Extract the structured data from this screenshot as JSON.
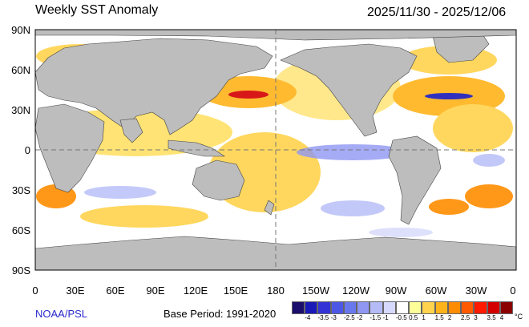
{
  "header": {
    "title": "Weekly SST Anomaly",
    "dates": "2025/11/30 - 2025/12/06"
  },
  "latitude_labels": [
    "90N",
    "60N",
    "30N",
    "0",
    "30S",
    "60S",
    "90S"
  ],
  "longitude_labels": [
    "0",
    "30E",
    "60E",
    "90E",
    "120E",
    "150E",
    "180",
    "150W",
    "120W",
    "90W",
    "60W",
    "30W",
    "0"
  ],
  "footer": {
    "credit": "NOAA/PSL",
    "base_period": "Base Period: 1991-2020"
  },
  "colorbar": {
    "ticks": [
      "-4",
      "-3.5",
      "-3",
      "-2.5",
      "-2",
      "-1.5",
      "-1",
      "-0.5",
      "0.5",
      "1",
      "1.5",
      "2",
      "2.5",
      "3",
      "3.5",
      "4"
    ],
    "unit": "°C",
    "colors": [
      "#1a0d6b",
      "#1a1ab8",
      "#3333d6",
      "#4d57e6",
      "#6a78ee",
      "#8f97f2",
      "#b4bbf7",
      "#d6d9fb",
      "#ffffff",
      "#ffff99",
      "#ffd34d",
      "#ffb31a",
      "#ff8c00",
      "#ff5a00",
      "#ff1a00",
      "#d40000",
      "#8b0000"
    ]
  },
  "colors": {
    "land": "#bdbdbd",
    "ocean": "#ffffff",
    "credit": "#2a2acb"
  }
}
